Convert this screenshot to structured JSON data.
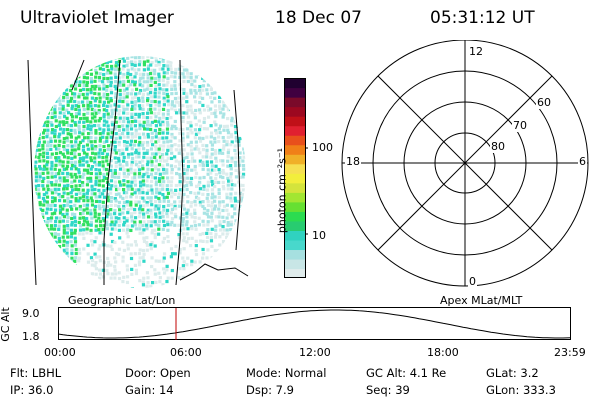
{
  "header": {
    "instrument": "Ultraviolet Imager",
    "date": "18 Dec 07",
    "time": "05:31:12 UT"
  },
  "colorbar": {
    "unit_label": "photon cm⁻²s⁻¹",
    "ticks": [
      "100",
      "10"
    ],
    "colors": [
      "#e0ecec",
      "#c8e6e6",
      "#a6e0e0",
      "#48d8cc",
      "#30d2c0",
      "#28cc70",
      "#2bdc50",
      "#66e032",
      "#a2e632",
      "#d4e43c",
      "#f2ee3c",
      "#f6e052",
      "#f0b028",
      "#f08018",
      "#e8501c",
      "#e02030",
      "#c01018",
      "#9c0820",
      "#7a0a2a",
      "#400040",
      "#200030"
    ]
  },
  "geographic": {
    "caption": "Geographic Lat/Lon",
    "colors": {
      "dense": "#2fe060",
      "mid": "#30d8c8",
      "light": "#a8e4e4",
      "faint": "#dcecec"
    }
  },
  "polar": {
    "caption": "Apex MLat/MLT",
    "mlt_labels": {
      "top": "12",
      "left": "18",
      "right": "6",
      "bottom": "0"
    },
    "mlat_labels": [
      "60",
      "70",
      "80"
    ]
  },
  "altitude": {
    "axis_label": "GC Alt",
    "y_ticks": [
      "9.0",
      "1.8"
    ],
    "x_ticks": [
      "00:00",
      "06:00",
      "12:00",
      "18:00",
      "23:59"
    ],
    "marker_color": "#c00000"
  },
  "status": {
    "flt": "Flt: LBHL",
    "door": "Door: Open",
    "mode": "Mode:  Normal",
    "gcalt": "GC Alt: 4.1 Re",
    "glat": "GLat:    3.2",
    "ip": "IP: 36.0",
    "gain": "Gain: 14",
    "dsp": "Dsp:    7.9",
    "seq": "Seq: 39",
    "glon": "GLon: 333.3"
  }
}
